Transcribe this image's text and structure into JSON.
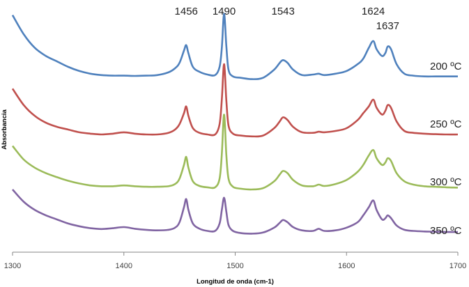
{
  "chart_data": {
    "type": "line",
    "xlabel": "Longitud de onda (cm-1)",
    "ylabel": "Absorbancia",
    "xlim": [
      1300,
      1700
    ],
    "x_ticks": [
      "1300",
      "1400",
      "1500",
      "1600",
      "1700"
    ],
    "grid": false,
    "legend": "inline labels at right end of each line",
    "peak_labels": [
      {
        "text": "1456",
        "x": 1456
      },
      {
        "text": "1490",
        "x": 1490
      },
      {
        "text": "1543",
        "x": 1543
      },
      {
        "text": "1624",
        "x": 1624
      },
      {
        "text": "1637",
        "x": 1637
      }
    ],
    "series": [
      {
        "name": "200 ºC",
        "color": "#4F81BD",
        "x": [
          1300,
          1310,
          1320,
          1330,
          1340,
          1350,
          1360,
          1370,
          1380,
          1390,
          1400,
          1410,
          1420,
          1430,
          1440,
          1446,
          1450,
          1454,
          1456,
          1458,
          1462,
          1468,
          1475,
          1482,
          1486,
          1488,
          1490,
          1492,
          1494,
          1498,
          1505,
          1515,
          1525,
          1535,
          1540,
          1543,
          1547,
          1552,
          1560,
          1570,
          1575,
          1580,
          1590,
          1600,
          1610,
          1615,
          1620,
          1624,
          1627,
          1632,
          1635,
          1637,
          1640,
          1645,
          1652,
          1660,
          1670,
          1680,
          1690,
          1700
        ],
        "y": [
          0.97,
          0.9,
          0.85,
          0.82,
          0.8,
          0.78,
          0.765,
          0.755,
          0.75,
          0.748,
          0.748,
          0.747,
          0.748,
          0.75,
          0.76,
          0.775,
          0.795,
          0.84,
          0.86,
          0.83,
          0.78,
          0.762,
          0.752,
          0.75,
          0.78,
          0.85,
          0.975,
          0.86,
          0.77,
          0.745,
          0.74,
          0.735,
          0.74,
          0.77,
          0.795,
          0.805,
          0.795,
          0.77,
          0.75,
          0.752,
          0.755,
          0.75,
          0.755,
          0.765,
          0.79,
          0.81,
          0.85,
          0.875,
          0.845,
          0.82,
          0.832,
          0.855,
          0.845,
          0.79,
          0.755,
          0.748,
          0.745,
          0.745,
          0.745,
          0.745
        ]
      },
      {
        "name": "250 ºC",
        "color": "#C0504D",
        "x": [
          1300,
          1310,
          1320,
          1330,
          1340,
          1350,
          1360,
          1370,
          1380,
          1390,
          1400,
          1410,
          1420,
          1430,
          1440,
          1446,
          1450,
          1454,
          1456,
          1458,
          1462,
          1468,
          1475,
          1482,
          1486,
          1488,
          1490,
          1492,
          1494,
          1498,
          1505,
          1515,
          1525,
          1535,
          1540,
          1543,
          1547,
          1552,
          1560,
          1570,
          1575,
          1580,
          1590,
          1600,
          1610,
          1615,
          1620,
          1624,
          1627,
          1632,
          1635,
          1637,
          1640,
          1645,
          1652,
          1660,
          1670,
          1680,
          1690,
          1700
        ],
        "y": [
          0.7,
          0.64,
          0.6,
          0.575,
          0.56,
          0.55,
          0.54,
          0.535,
          0.532,
          0.535,
          0.54,
          0.535,
          0.532,
          0.532,
          0.538,
          0.55,
          0.57,
          0.61,
          0.635,
          0.6,
          0.555,
          0.538,
          0.532,
          0.532,
          0.57,
          0.66,
          0.79,
          0.66,
          0.565,
          0.535,
          0.528,
          0.525,
          0.528,
          0.555,
          0.58,
          0.595,
          0.585,
          0.56,
          0.54,
          0.538,
          0.542,
          0.54,
          0.545,
          0.555,
          0.585,
          0.61,
          0.635,
          0.66,
          0.63,
          0.605,
          0.62,
          0.64,
          0.63,
          0.58,
          0.545,
          0.538,
          0.535,
          0.533,
          0.532,
          0.532
        ]
      },
      {
        "name": "300 ºC",
        "color": "#9BBB59",
        "x": [
          1300,
          1310,
          1320,
          1330,
          1340,
          1350,
          1360,
          1370,
          1380,
          1390,
          1400,
          1410,
          1420,
          1430,
          1440,
          1446,
          1450,
          1454,
          1456,
          1458,
          1462,
          1468,
          1475,
          1482,
          1486,
          1488,
          1490,
          1492,
          1494,
          1498,
          1505,
          1515,
          1525,
          1535,
          1540,
          1543,
          1547,
          1552,
          1560,
          1570,
          1575,
          1580,
          1590,
          1600,
          1610,
          1615,
          1620,
          1624,
          1627,
          1632,
          1635,
          1637,
          1640,
          1645,
          1652,
          1660,
          1670,
          1680,
          1690,
          1700
        ],
        "y": [
          0.49,
          0.44,
          0.41,
          0.39,
          0.375,
          0.362,
          0.352,
          0.345,
          0.342,
          0.342,
          0.345,
          0.342,
          0.34,
          0.34,
          0.342,
          0.35,
          0.37,
          0.42,
          0.45,
          0.41,
          0.36,
          0.343,
          0.338,
          0.338,
          0.37,
          0.46,
          0.605,
          0.46,
          0.37,
          0.34,
          0.333,
          0.33,
          0.335,
          0.36,
          0.385,
          0.398,
          0.39,
          0.365,
          0.345,
          0.342,
          0.348,
          0.343,
          0.35,
          0.365,
          0.395,
          0.42,
          0.455,
          0.475,
          0.445,
          0.42,
          0.43,
          0.445,
          0.435,
          0.39,
          0.36,
          0.348,
          0.342,
          0.34,
          0.338,
          0.337
        ]
      },
      {
        "name": "350 ºC",
        "color": "#8064A2",
        "x": [
          1300,
          1310,
          1320,
          1330,
          1340,
          1350,
          1360,
          1370,
          1380,
          1390,
          1400,
          1410,
          1420,
          1430,
          1440,
          1446,
          1450,
          1454,
          1456,
          1458,
          1462,
          1468,
          1475,
          1482,
          1486,
          1488,
          1490,
          1492,
          1494,
          1498,
          1505,
          1515,
          1525,
          1535,
          1540,
          1543,
          1547,
          1552,
          1560,
          1570,
          1575,
          1580,
          1590,
          1600,
          1610,
          1615,
          1620,
          1624,
          1627,
          1632,
          1635,
          1637,
          1640,
          1645,
          1652,
          1660,
          1670,
          1680,
          1690,
          1700
        ],
        "y": [
          0.33,
          0.285,
          0.255,
          0.235,
          0.22,
          0.205,
          0.195,
          0.188,
          0.185,
          0.188,
          0.192,
          0.186,
          0.182,
          0.18,
          0.182,
          0.19,
          0.21,
          0.265,
          0.295,
          0.255,
          0.205,
          0.186,
          0.178,
          0.178,
          0.205,
          0.255,
          0.3,
          0.25,
          0.2,
          0.178,
          0.17,
          0.168,
          0.172,
          0.19,
          0.208,
          0.218,
          0.21,
          0.192,
          0.18,
          0.178,
          0.186,
          0.178,
          0.18,
          0.19,
          0.21,
          0.235,
          0.265,
          0.29,
          0.255,
          0.22,
          0.225,
          0.235,
          0.225,
          0.198,
          0.182,
          0.178,
          0.176,
          0.175,
          0.174,
          0.174
        ]
      }
    ]
  }
}
